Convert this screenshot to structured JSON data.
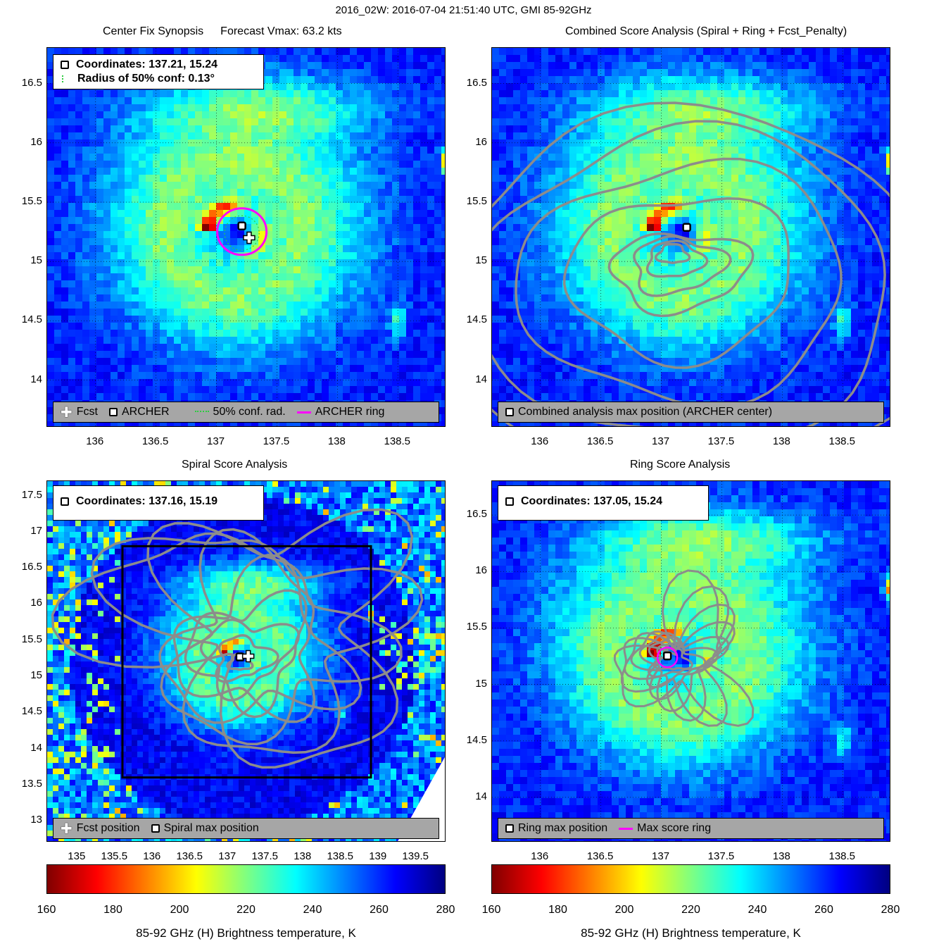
{
  "figure": {
    "title": "2016_02W: 2016-07-04 21:51:40 UTC, GMI 85-92GHz"
  },
  "chart_data": [
    {
      "type": "heatmap",
      "panel": "synopsis",
      "title": "Center Fix Synopsis",
      "subtitle": "Forecast Vmax: 63.2 kts",
      "x_ticks": [
        "136",
        "136.5",
        "137",
        "137.5",
        "138",
        "138.5"
      ],
      "y_ticks": [
        "16.5",
        "16",
        "15.5",
        "15",
        "14.5",
        "14"
      ],
      "xlim": [
        135.6,
        138.9
      ],
      "ylim": [
        13.6,
        16.8
      ],
      "grid": true,
      "info": {
        "line1": "Coordinates: 137.21, 15.24",
        "line2": "Radius of 50% conf: 0.13°"
      },
      "archer_center": [
        137.21,
        15.24
      ],
      "forecast_position": [
        137.27,
        15.2
      ],
      "confidence_radius_deg": 0.13,
      "legend": {
        "fcst": "Fcst",
        "archer": "ARCHER",
        "conf": "50% conf. rad.",
        "ring": "ARCHER ring"
      }
    },
    {
      "type": "heatmap",
      "panel": "combined",
      "title": "Combined Score Analysis (Spiral + Ring + Fcst_Penalty)",
      "x_ticks": [
        "136",
        "136.5",
        "137",
        "137.5",
        "138",
        "138.5"
      ],
      "y_ticks": [
        "16.5",
        "16",
        "15.5",
        "15",
        "14.5",
        "14"
      ],
      "xlim": [
        135.6,
        138.9
      ],
      "ylim": [
        13.6,
        16.8
      ],
      "grid": true,
      "max_position": [
        137.21,
        15.24
      ],
      "legend": {
        "max": "Combined analysis max position (ARCHER center)"
      }
    },
    {
      "type": "heatmap",
      "panel": "spiral",
      "title": "Spiral Score Analysis",
      "x_ticks": [
        "135",
        "135.5",
        "136",
        "136.5",
        "137",
        "137.5",
        "138",
        "138.5",
        "139",
        "139.5"
      ],
      "y_ticks": [
        "17.5",
        "17",
        "16.5",
        "16",
        "15.5",
        "15",
        "14.5",
        "14",
        "13.5",
        "13"
      ],
      "xlim": [
        134.6,
        139.9
      ],
      "ylim": [
        12.7,
        17.7
      ],
      "grid": false,
      "info": {
        "line1": "Coordinates: 137.16, 15.19"
      },
      "spiral_max": [
        137.16,
        15.19
      ],
      "forecast_position": [
        137.27,
        15.2
      ],
      "search_box": {
        "lon": [
          135.6,
          138.9
        ],
        "lat": [
          13.6,
          16.8
        ]
      },
      "legend": {
        "fcst": "Fcst position",
        "max": "Spiral max position"
      }
    },
    {
      "type": "heatmap",
      "panel": "ring",
      "title": "Ring Score Analysis",
      "x_ticks": [
        "136",
        "136.5",
        "137",
        "137.5",
        "138",
        "138.5"
      ],
      "y_ticks": [
        "16.5",
        "16",
        "15.5",
        "15",
        "14.5",
        "14"
      ],
      "xlim": [
        135.6,
        138.9
      ],
      "ylim": [
        13.6,
        16.8
      ],
      "grid": true,
      "info": {
        "line1": "Coordinates: 137.05, 15.24"
      },
      "ring_max": [
        137.05,
        15.24
      ],
      "legend": {
        "max": "Ring max position",
        "ring": "Max score ring"
      }
    }
  ],
  "colorbar": {
    "ticks": [
      "160",
      "180",
      "200",
      "220",
      "240",
      "260",
      "280"
    ],
    "range": [
      160,
      280
    ],
    "label": "85-92 GHz (H) Brightness temperature, K",
    "colors": [
      "#800000",
      "#ff0000",
      "#ff8000",
      "#ffff00",
      "#80ff80",
      "#00ffff",
      "#0080ff",
      "#0000ff",
      "#000080"
    ]
  }
}
